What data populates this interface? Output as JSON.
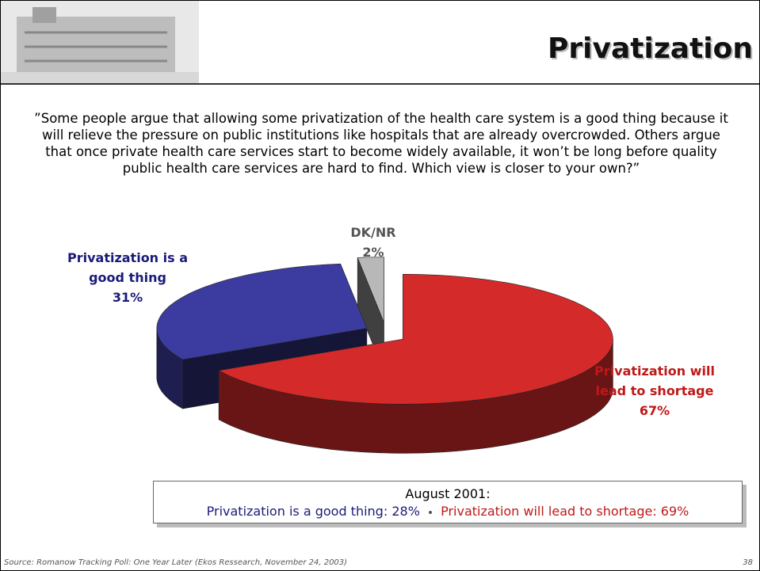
{
  "chart_data": {
    "type": "pie",
    "title": "Privatization",
    "subtitle": "”Some people argue that allowing some privatization of the health care system is a good thing because it will relieve the pressure on public institutions like hospitals that are already overcrowded. Others argue that once private health care services start to become widely available, it won’t be long before quality public health care services are hard to find. Which view is closer to your own?”",
    "categories": [
      "Privatization will lead to shortage",
      "Privatization is a good thing",
      "DK/NR"
    ],
    "values": [
      67,
      31,
      2
    ],
    "value_labels": [
      "67%",
      "31%",
      "2%"
    ],
    "colors": [
      "#d42a2a",
      "#3c3ca0",
      "#b8b8b8"
    ],
    "comparison": {
      "title": "August 2001:",
      "items": [
        {
          "label": "Privatization is a good thing:",
          "value": "28%"
        },
        {
          "label": "Privatization will lead to shortage:",
          "value": "69%"
        }
      ]
    }
  },
  "footer": {
    "source": "Source: Romanow Tracking Poll: One Year Later (Ekos Ressearch, November 24, 2003)",
    "page": "38"
  }
}
